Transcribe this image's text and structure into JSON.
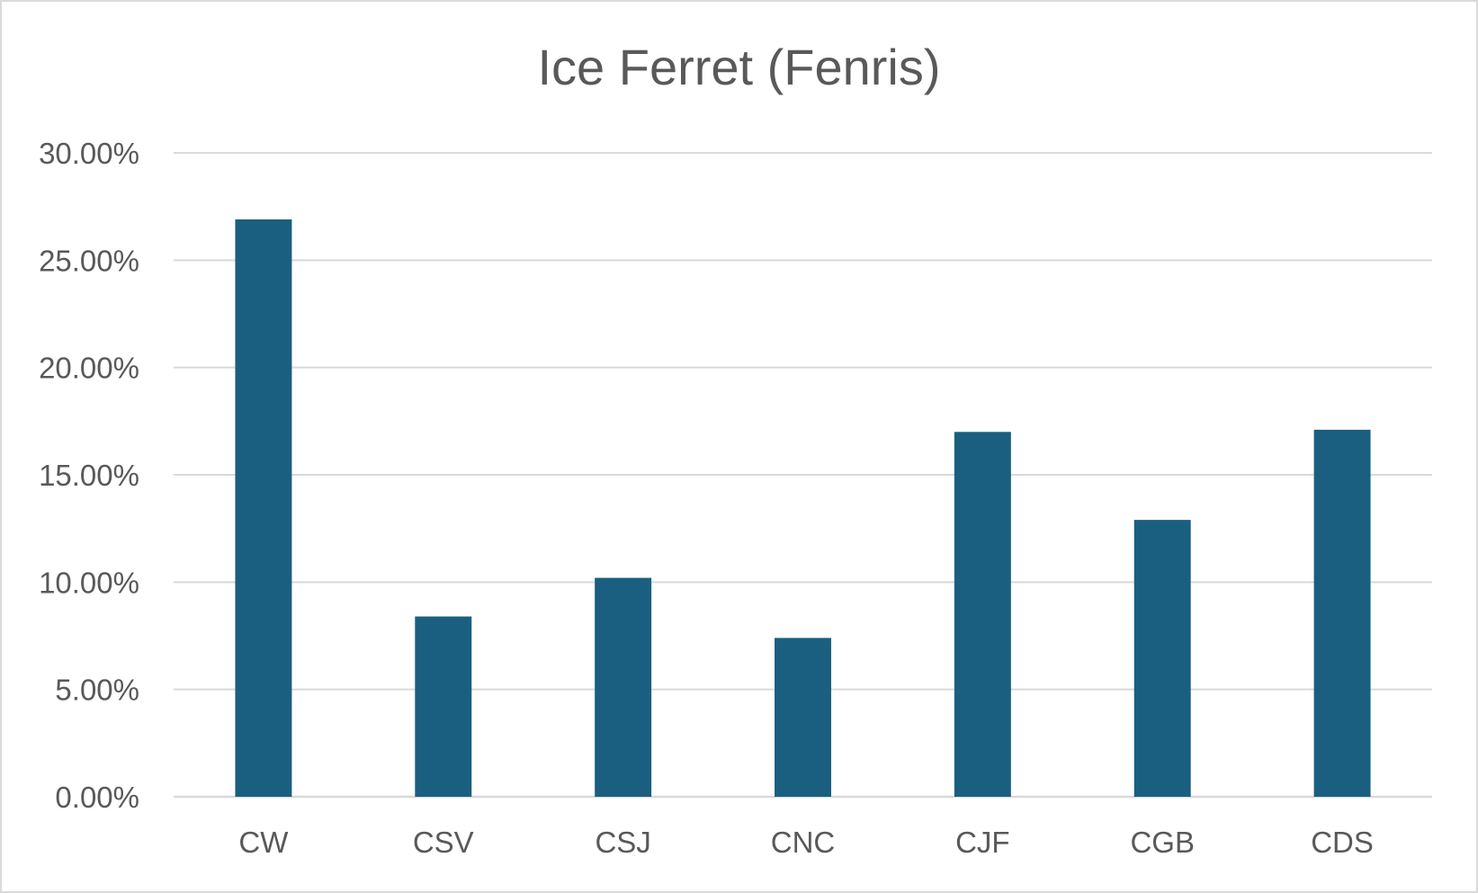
{
  "chart_data": {
    "type": "bar",
    "title": "Ice Ferret (Fenris)",
    "categories": [
      "CW",
      "CSV",
      "CSJ",
      "CNC",
      "CJF",
      "CGB",
      "CDS"
    ],
    "values": [
      26.9,
      8.4,
      10.2,
      7.4,
      17.0,
      12.9,
      17.1
    ],
    "value_format": "percent",
    "xlabel": "",
    "ylabel": "",
    "ylim": [
      0,
      30
    ],
    "yticks": [
      "0.00%",
      "5.00%",
      "10.00%",
      "15.00%",
      "20.00%",
      "25.00%",
      "30.00%"
    ],
    "grid": true,
    "legend": "none",
    "bar_color": "#1a5f80",
    "grid_color": "#d9d9d9",
    "text_color": "#595959"
  }
}
